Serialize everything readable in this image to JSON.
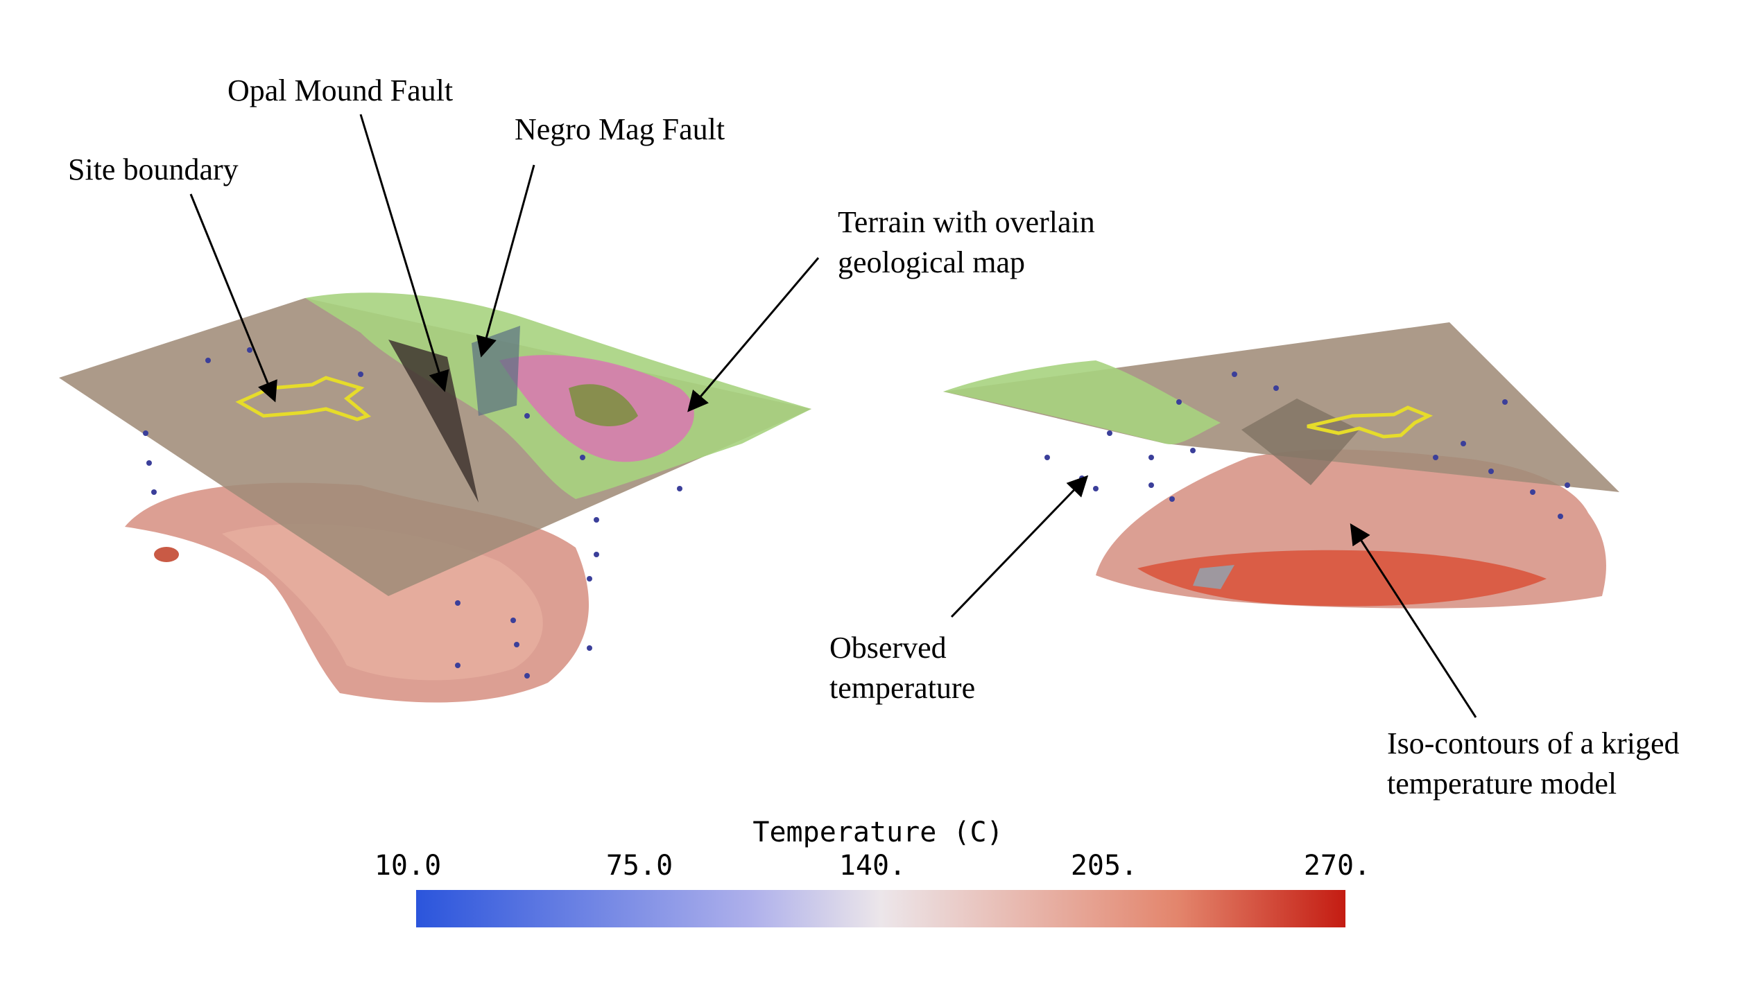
{
  "annotations": {
    "opal_mound_fault": "Opal Mound Fault",
    "negro_mag_fault": "Negro Mag Fault",
    "site_boundary": "Site boundary",
    "terrain": "Terrain with overlain\ngeological map",
    "observed_temperature": "Observed\ntemperature",
    "iso_contours": "Iso-contours of a kriged\ntemperature model"
  },
  "colorbar": {
    "title": "Temperature (C)",
    "ticks": [
      "10.0",
      "75.0",
      "140.",
      "205.",
      "270."
    ],
    "min_color": "#2b55dc",
    "mid_color": "#ece6ea",
    "max_color": "#c41c12"
  }
}
